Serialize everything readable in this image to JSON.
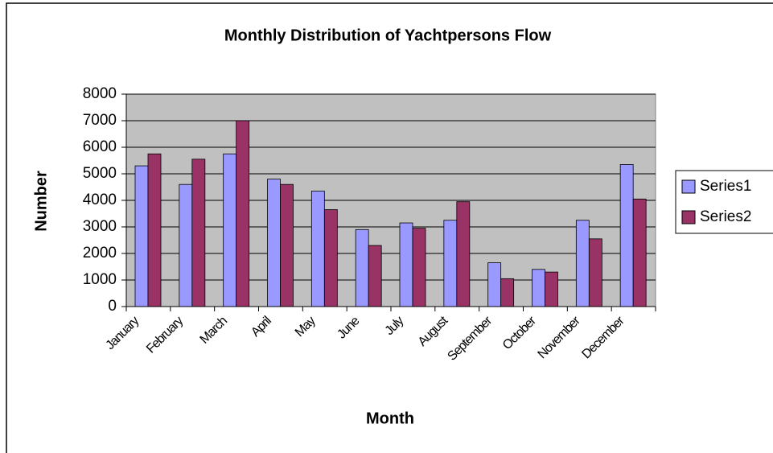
{
  "chart_data": {
    "type": "bar",
    "title": "Monthly Distribution of Yachtpersons Flow",
    "x_label": "Month",
    "y_label": "Number",
    "categories": [
      "January",
      "February",
      "March",
      "April",
      "May",
      "June",
      "July",
      "August",
      "September",
      "October",
      "November",
      "December"
    ],
    "series": [
      {
        "name": "Series1",
        "color": "#9999ff",
        "values": [
          5300,
          4600,
          5750,
          4800,
          4350,
          2900,
          3150,
          3250,
          1650,
          1400,
          3250,
          5350
        ]
      },
      {
        "name": "Series2",
        "color": "#993366",
        "values": [
          5750,
          5550,
          7000,
          4600,
          3650,
          2300,
          2950,
          3950,
          1050,
          1300,
          2550,
          4050
        ]
      }
    ],
    "ylim": [
      0,
      8000
    ],
    "yticks": [
      0,
      1000,
      2000,
      3000,
      4000,
      5000,
      6000,
      7000,
      8000
    ],
    "grid": true,
    "legend": "right",
    "plot_background": "#c0c0c0"
  }
}
